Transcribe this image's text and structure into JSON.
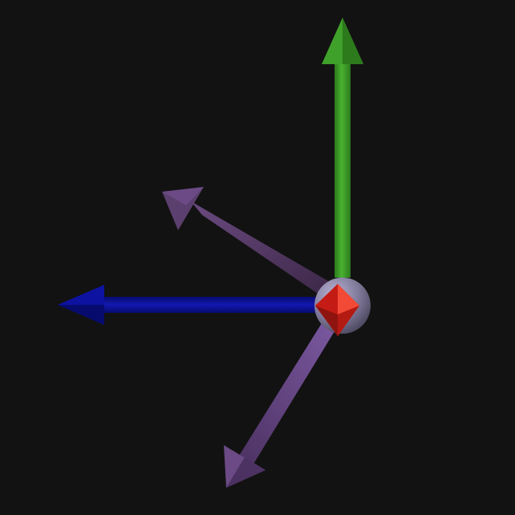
{
  "viewport": {
    "background": "#121212"
  },
  "scene": {
    "origin_marker": {
      "sphere_color": "#8d86a6",
      "octahedron_color": "#e0281e"
    },
    "arrows": [
      {
        "id": "axis-y",
        "label_semantic": "green-up-arrow",
        "color": "#3fa02a",
        "shade": "#2c7a1c"
      },
      {
        "id": "axis-x",
        "label_semantic": "blue-left-arrow",
        "color": "#0d13a0",
        "shade": "#070b6e"
      },
      {
        "id": "vector-upper",
        "label_semantic": "purple-upper-left-arrow",
        "color": "#5b3f6e",
        "shade": "#43294f"
      },
      {
        "id": "vector-lower",
        "label_semantic": "purple-lower-left-arrow",
        "color": "#6b4a85",
        "shade": "#4c3262"
      }
    ]
  }
}
